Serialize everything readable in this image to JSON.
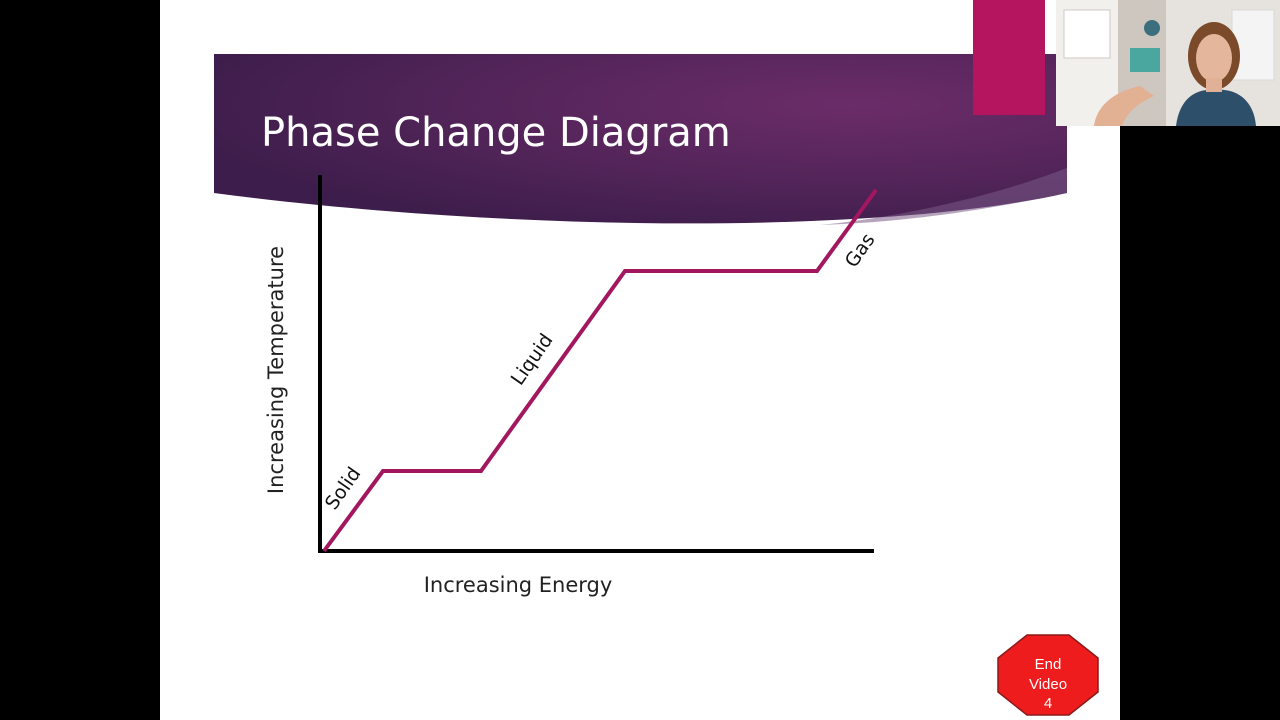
{
  "slide": {
    "title": "Phase Change Diagram",
    "accent_color": "#a3175e",
    "banner_color": "#4e2357"
  },
  "diagram": {
    "x_axis_label": "Increasing Energy",
    "y_axis_label": "Increasing Temperature",
    "phases": [
      {
        "label": "Solid"
      },
      {
        "label": "Liquid"
      },
      {
        "label": "Gas"
      }
    ]
  },
  "stop_sign": {
    "line1": "End",
    "line2": "Video",
    "line3": "4",
    "color": "#ee1c1c"
  },
  "webcam": {
    "description_icon": "presenter-video-icon"
  }
}
